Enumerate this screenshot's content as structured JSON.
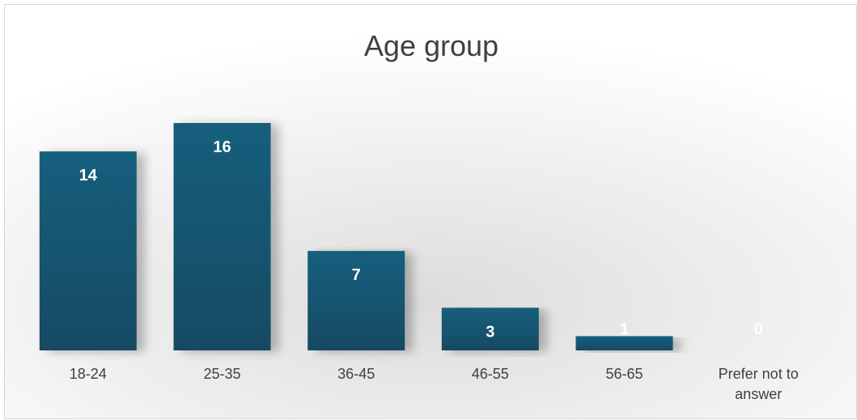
{
  "chart_data": {
    "type": "bar",
    "title": "Age group",
    "categories": [
      "18-24",
      "25-35",
      "36-45",
      "46-55",
      "56-65",
      "Prefer not to answer"
    ],
    "values": [
      14,
      16,
      7,
      3,
      1,
      0
    ],
    "xlabel": "",
    "ylabel": "",
    "ylim": [
      0,
      16
    ],
    "grid": false,
    "legend": "none",
    "bar_color": "#14556f",
    "data_label_color": "#ffffff"
  }
}
